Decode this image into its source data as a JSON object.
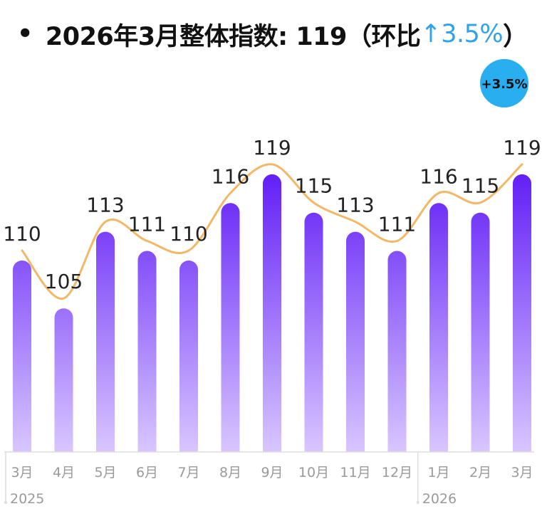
{
  "title": {
    "bullet": "•",
    "main": "2026年3月整体指数: 119（环比",
    "arrow": "↑",
    "change": "3.5%",
    "close": "）"
  },
  "badge": {
    "text": "+3.5%",
    "color": "#29aef0"
  },
  "colors": {
    "bar_top": "#5a14f5",
    "bar_bottom": "#d9c6ff",
    "line": "#f2b866",
    "axis": "#dddddd",
    "tick_text": "#9a9a9a",
    "value_text": "#222222"
  },
  "chart_data": {
    "type": "bar",
    "categories": [
      "3月",
      "4月",
      "5月",
      "6月",
      "7月",
      "8月",
      "9月",
      "10月",
      "11月",
      "12月",
      "1月",
      "2月",
      "3月"
    ],
    "year_labels": [
      {
        "text": "2025",
        "start_index": 0
      },
      {
        "text": "2026",
        "start_index": 10
      }
    ],
    "series": [
      {
        "values": [
          110,
          105,
          113,
          111,
          110,
          116,
          119,
          115,
          113,
          111,
          116,
          115,
          119
        ]
      }
    ],
    "overlay": "smooth-line",
    "ylim": [
      90,
      121
    ],
    "grid": false,
    "title": "2026年3月整体指数: 119（环比↑3.5%）",
    "xlabel": "",
    "ylabel": ""
  }
}
